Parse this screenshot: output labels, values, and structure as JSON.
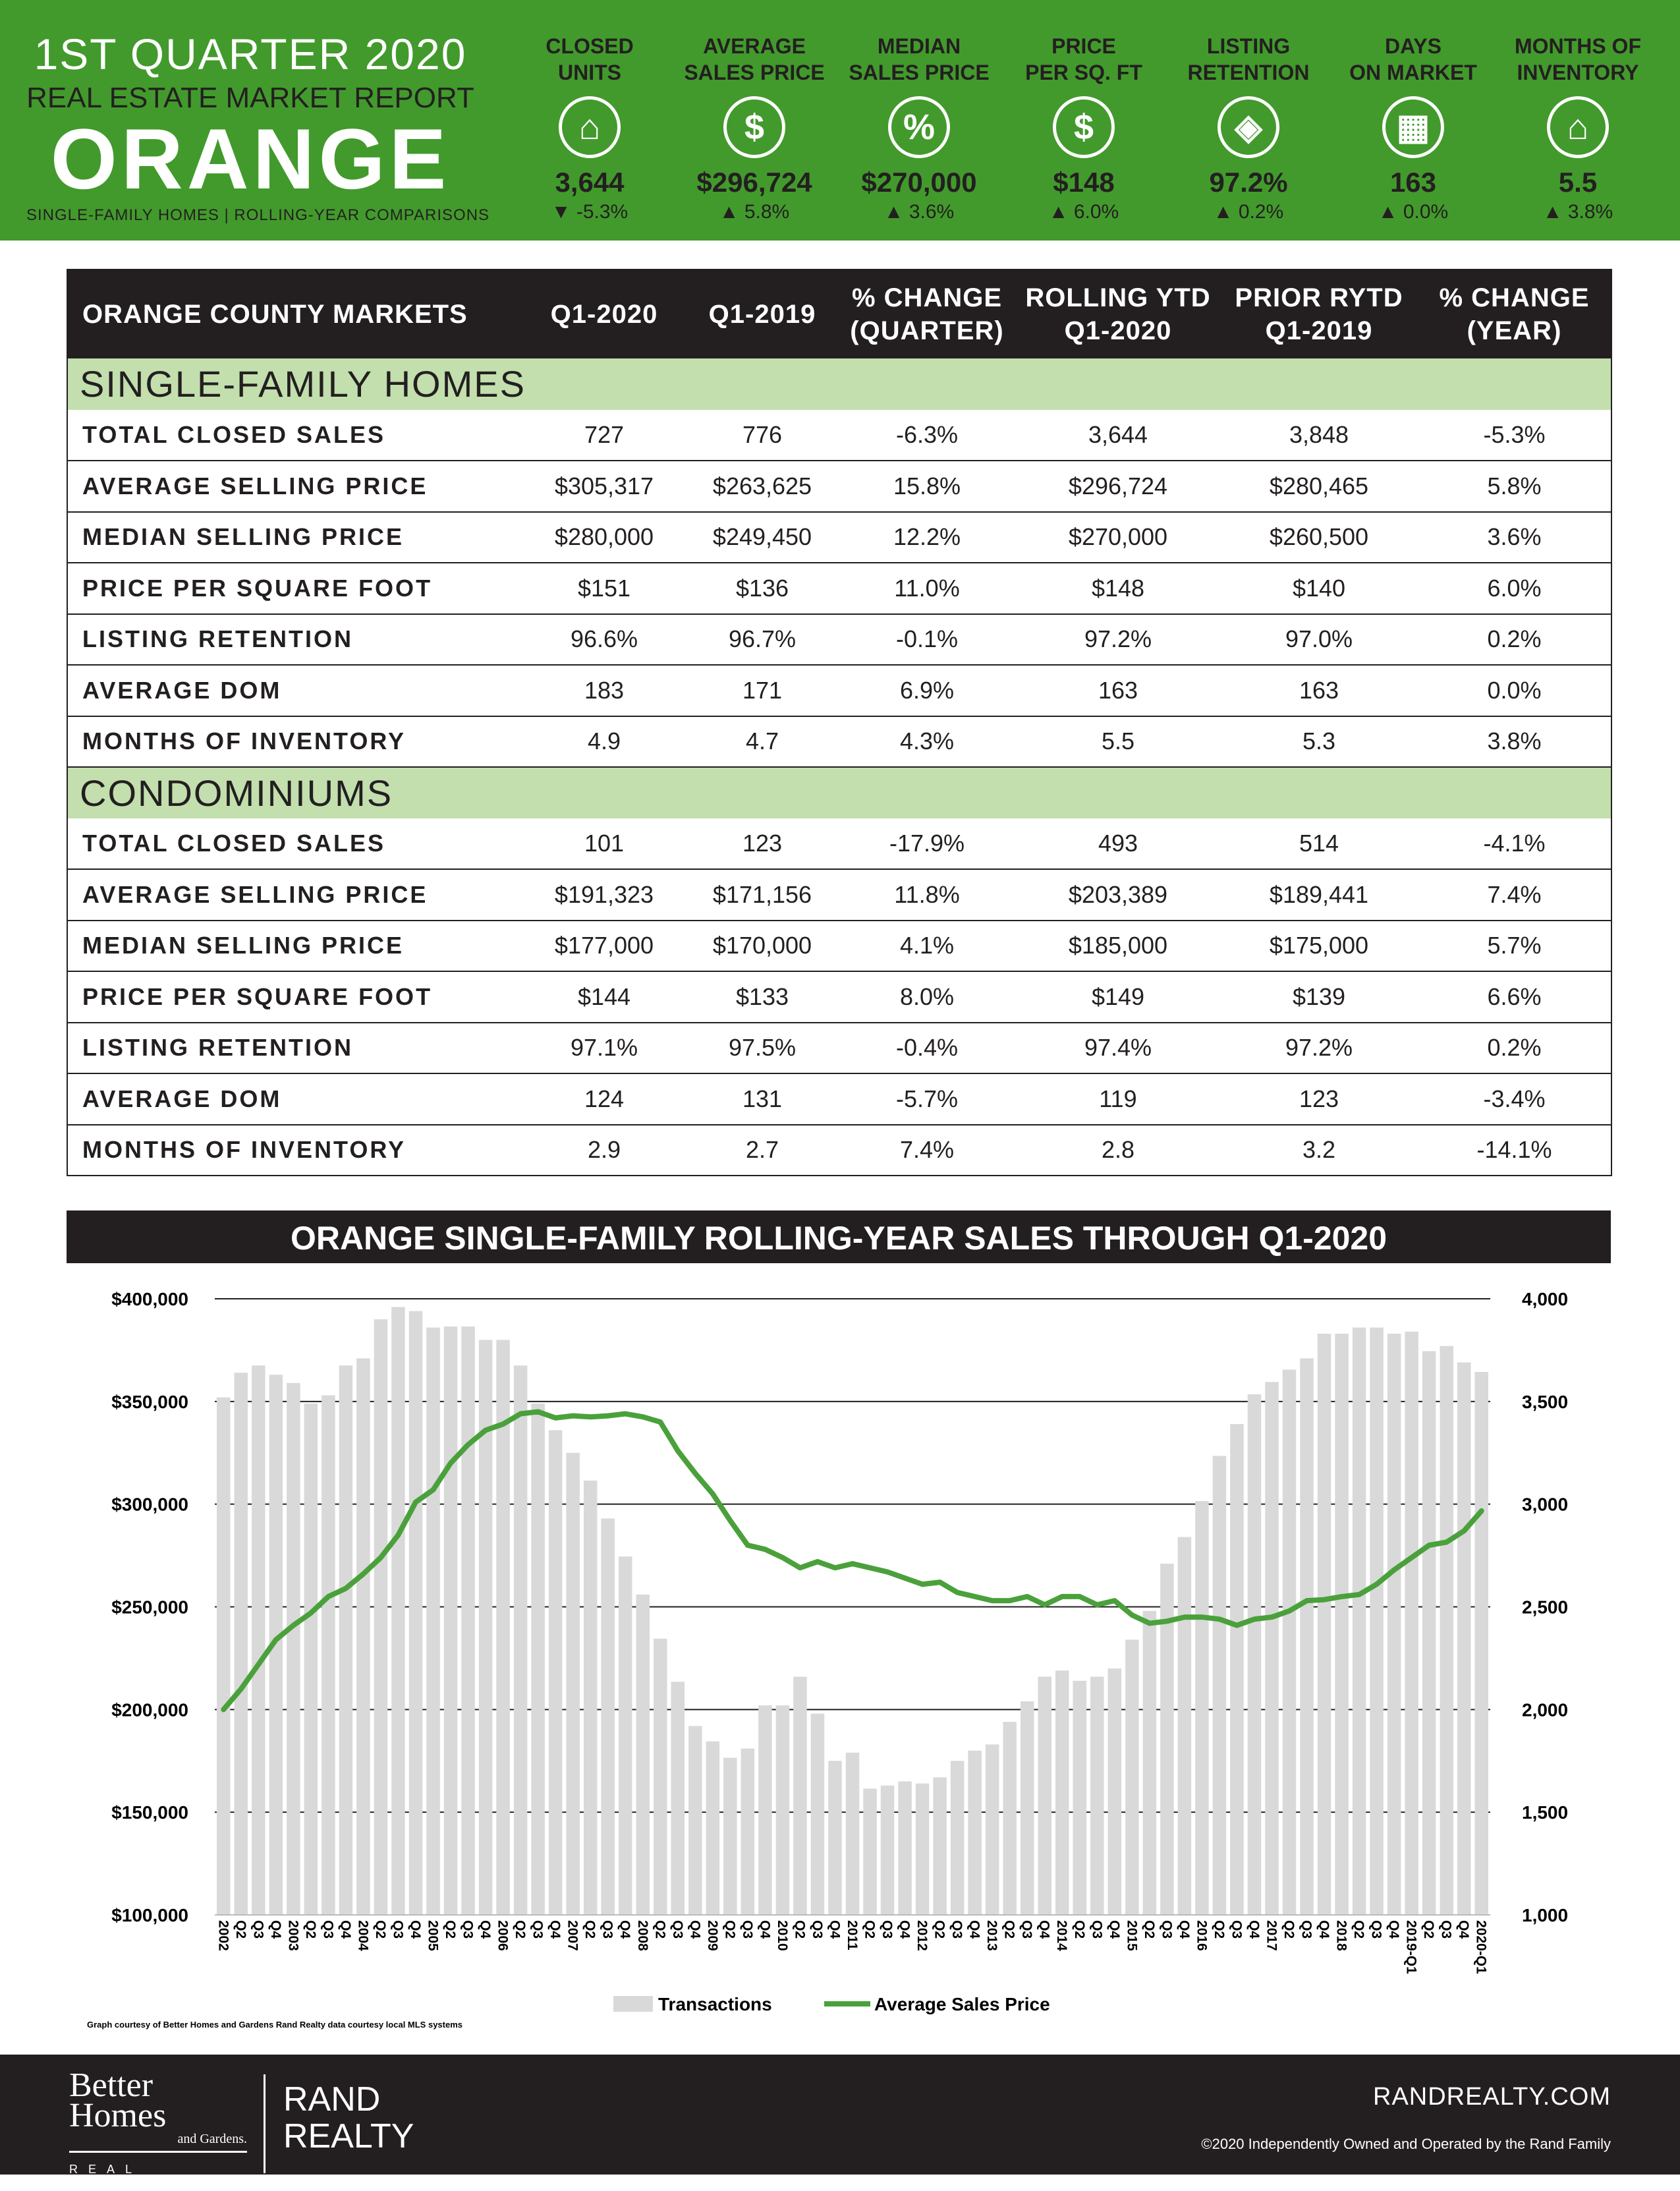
{
  "header": {
    "quarter": "1ST QUARTER 2020",
    "report": "REAL ESTATE MARKET REPORT",
    "area": "ORANGE",
    "subtitle": "SINGLE-FAMILY HOMES | ROLLING-YEAR COMPARISONS"
  },
  "metrics": [
    {
      "label": "CLOSED\nUNITS",
      "icon": "house-icon",
      "value": "3,644",
      "change": "▼ -5.3%"
    },
    {
      "label": "AVERAGE\nSALES PRICE",
      "icon": "dollar-icon",
      "value": "$296,724",
      "change": "▲ 5.8%"
    },
    {
      "label": "MEDIAN\nSALES PRICE",
      "icon": "house-dollar-icon",
      "value": "$270,000",
      "change": "▲ 3.6%"
    },
    {
      "label": "PRICE\nPER SQ. FT",
      "icon": "ruler-dollar-icon",
      "value": "$148",
      "change": "▲ 6.0%"
    },
    {
      "label": "LISTING\nRETENTION",
      "icon": "price-tag-icon",
      "value": "97.2%",
      "change": "▲ 0.2%"
    },
    {
      "label": "DAYS\nON MARKET",
      "icon": "calendar-icon",
      "value": "163",
      "change": "▲ 0.0%"
    },
    {
      "label": "MONTHS OF\nINVENTORY",
      "icon": "houses-icon",
      "value": "5.5",
      "change": "▲ 3.8%"
    }
  ],
  "table": {
    "headers": [
      "ORANGE COUNTY MARKETS",
      "Q1-2020",
      "Q1-2019",
      "% CHANGE\n(QUARTER)",
      "ROLLING YTD\nQ1-2020",
      "PRIOR RYTD\nQ1-2019",
      "% CHANGE\n(YEAR)"
    ],
    "sections": [
      {
        "title": "SINGLE-FAMILY HOMES",
        "rows": [
          [
            "TOTAL CLOSED SALES",
            "727",
            "776",
            "-6.3%",
            "3,644",
            "3,848",
            "-5.3%"
          ],
          [
            "AVERAGE SELLING PRICE",
            "$305,317",
            "$263,625",
            "15.8%",
            "$296,724",
            "$280,465",
            "5.8%"
          ],
          [
            "MEDIAN SELLING PRICE",
            "$280,000",
            "$249,450",
            "12.2%",
            "$270,000",
            "$260,500",
            "3.6%"
          ],
          [
            "PRICE PER SQUARE FOOT",
            "$151",
            "$136",
            "11.0%",
            "$148",
            "$140",
            "6.0%"
          ],
          [
            "LISTING RETENTION",
            "96.6%",
            "96.7%",
            "-0.1%",
            "97.2%",
            "97.0%",
            "0.2%"
          ],
          [
            "AVERAGE DOM",
            "183",
            "171",
            "6.9%",
            "163",
            "163",
            "0.0%"
          ],
          [
            "MONTHS OF INVENTORY",
            "4.9",
            "4.7",
            "4.3%",
            "5.5",
            "5.3",
            "3.8%"
          ]
        ]
      },
      {
        "title": "CONDOMINIUMS",
        "rows": [
          [
            "TOTAL CLOSED SALES",
            "101",
            "123",
            "-17.9%",
            "493",
            "514",
            "-4.1%"
          ],
          [
            "AVERAGE SELLING PRICE",
            "$191,323",
            "$171,156",
            "11.8%",
            "$203,389",
            "$189,441",
            "7.4%"
          ],
          [
            "MEDIAN SELLING PRICE",
            "$177,000",
            "$170,000",
            "4.1%",
            "$185,000",
            "$175,000",
            "5.7%"
          ],
          [
            "PRICE PER SQUARE FOOT",
            "$144",
            "$133",
            "8.0%",
            "$149",
            "$139",
            "6.6%"
          ],
          [
            "LISTING RETENTION",
            "97.1%",
            "97.5%",
            "-0.4%",
            "97.4%",
            "97.2%",
            "0.2%"
          ],
          [
            "AVERAGE DOM",
            "124",
            "131",
            "-5.7%",
            "119",
            "123",
            "-3.4%"
          ],
          [
            "MONTHS OF INVENTORY",
            "2.9",
            "2.7",
            "7.4%",
            "2.8",
            "3.2",
            "-14.1%"
          ]
        ]
      }
    ]
  },
  "chart_data": {
    "type": "bar+line",
    "title": "ORANGE SINGLE-FAMILY ROLLING-YEAR SALES THROUGH Q1-2020",
    "categories": [
      "2002",
      "Q2",
      "Q3",
      "Q4",
      "2003",
      "Q2",
      "Q3",
      "Q4",
      "2004",
      "Q2",
      "Q3",
      "Q4",
      "2005",
      "Q2",
      "Q3",
      "Q4",
      "2006",
      "Q2",
      "Q3",
      "Q4",
      "2007",
      "Q2",
      "Q3",
      "Q4",
      "2008",
      "Q2",
      "Q3",
      "Q4",
      "2009",
      "Q2",
      "Q3",
      "Q4",
      "2010",
      "Q2",
      "Q3",
      "Q4",
      "2011",
      "Q2",
      "Q3",
      "Q4",
      "2012",
      "Q2",
      "Q3",
      "Q4",
      "2013",
      "Q2",
      "Q3",
      "Q4",
      "2014",
      "Q2",
      "Q3",
      "Q4",
      "2015",
      "Q2",
      "Q3",
      "Q4",
      "2016",
      "Q2",
      "Q3",
      "Q4",
      "2017",
      "Q2",
      "Q3",
      "Q4",
      "2018",
      "Q2",
      "Q3",
      "Q4",
      "2019-Q1",
      "Q2",
      "Q3",
      "Q4",
      "2020-Q1"
    ],
    "series": [
      {
        "name": "Transactions",
        "type": "bar",
        "axis": "right",
        "color": "#d9d9d9",
        "values": [
          3520,
          3640,
          3675,
          3630,
          3590,
          3490,
          3530,
          3675,
          3710,
          3900,
          3960,
          3940,
          3860,
          3865,
          3865,
          3800,
          3800,
          3675,
          3490,
          3360,
          3250,
          3115,
          2930,
          2745,
          2560,
          2345,
          2135,
          1920,
          1845,
          1765,
          1810,
          2020,
          2020,
          2160,
          1980,
          1750,
          1790,
          1615,
          1630,
          1650,
          1640,
          1670,
          1750,
          1800,
          1830,
          1940,
          2040,
          2160,
          2190,
          2140,
          2160,
          2200,
          2340,
          2480,
          2710,
          2840,
          3015,
          3235,
          3390,
          3535,
          3595,
          3655,
          3710,
          3830,
          3830,
          3860,
          3860,
          3830,
          3840,
          3745,
          3770,
          3690,
          3644
        ]
      },
      {
        "name": "Average Sales Price",
        "type": "line",
        "axis": "left",
        "color": "#4aa13b",
        "values": [
          200000,
          210000,
          222000,
          234000,
          241000,
          247000,
          255000,
          259000,
          266000,
          274000,
          285000,
          301000,
          307000,
          320000,
          329000,
          336000,
          339000,
          344000,
          345000,
          342000,
          343000,
          342500,
          343000,
          344000,
          342500,
          340000,
          326000,
          315000,
          305000,
          292000,
          280000,
          278000,
          274000,
          269000,
          272000,
          269000,
          271000,
          269000,
          267000,
          264000,
          261000,
          262000,
          257000,
          255000,
          253000,
          253000,
          255000,
          251000,
          255000,
          255000,
          251000,
          253000,
          246000,
          242000,
          243000,
          245000,
          245000,
          244000,
          241000,
          244000,
          245000,
          248000,
          253000,
          253500,
          255000,
          256000,
          261000,
          268000,
          274000,
          280000,
          281500,
          287000,
          296724
        ]
      }
    ],
    "left_axis": {
      "range": [
        100000,
        400000
      ],
      "ticks": [
        "$100,000",
        "$150,000",
        "$200,000",
        "$250,000",
        "$300,000",
        "$350,000",
        "$400,000"
      ]
    },
    "right_axis": {
      "range": [
        1000,
        4000
      ],
      "ticks": [
        "1,000",
        "1,500",
        "2,000",
        "2,500",
        "3,000",
        "3,500",
        "4,000"
      ]
    },
    "grid": true,
    "legend": "bottom-center",
    "footnote": "Graph courtesy of Better Homes and Gardens Rand Realty data courtesy local MLS systems"
  },
  "footer": {
    "logo_text": "Better Homes and Gardens REAL ESTATE",
    "brand_line1": "RAND",
    "brand_line2": "REALTY",
    "website": "RANDREALTY.COM",
    "copyright": "©2020 Independently Owned and Operated by the Rand Family"
  }
}
